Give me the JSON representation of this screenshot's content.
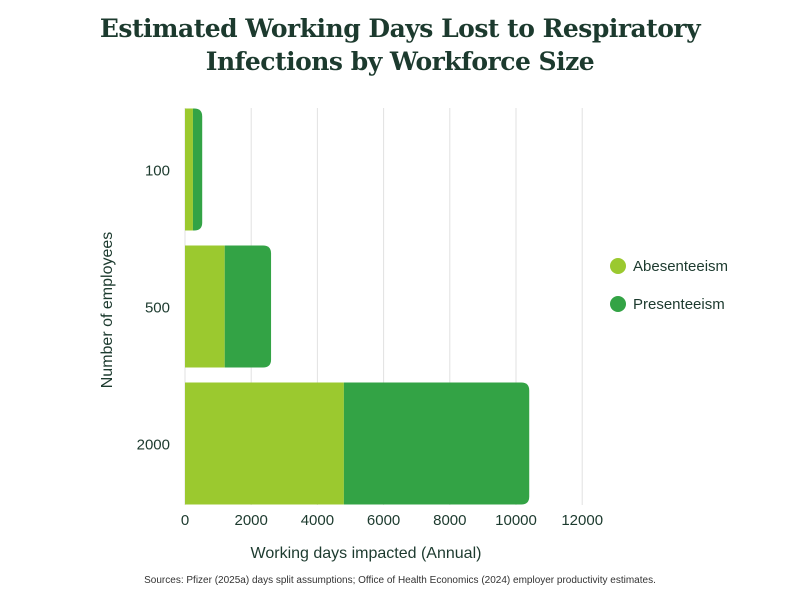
{
  "chart_data": {
    "type": "bar",
    "orientation": "horizontal",
    "stacked": true,
    "title": "Estimated Working Days Lost to Respiratory Infections by Workforce Size",
    "xlabel": "Working days impacted (Annual)",
    "ylabel": "Number of employees",
    "categories": [
      "100",
      "500",
      "2000"
    ],
    "series": [
      {
        "name": "Abesenteeism",
        "values": [
          240,
          1200,
          4800
        ],
        "color": "#9bc92f"
      },
      {
        "name": "Presenteeism",
        "values": [
          280,
          1400,
          5600
        ],
        "color": "#33a345"
      }
    ],
    "xlim": [
      0,
      12000
    ],
    "xticks": [
      "0",
      "2000",
      "4000",
      "6000",
      "8000",
      "10000",
      "12000"
    ],
    "grid": "vertical",
    "legend": "right"
  },
  "source": "Sources: Pfizer (2025a) days split assumptions; Office of Health Economics (2024) employer productivity estimates."
}
